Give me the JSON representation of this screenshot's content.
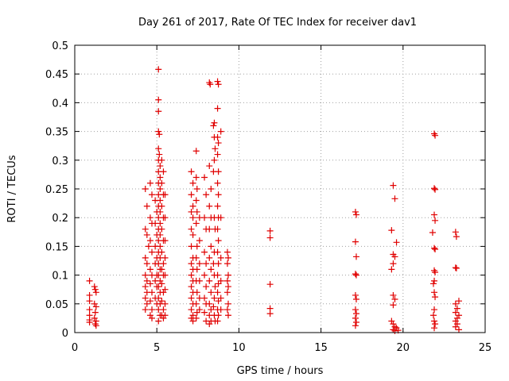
{
  "chart_data": {
    "type": "scatter",
    "title": "Day 261 of 2017, Rate Of TEC Index for receiver dav1",
    "xlabel": "GPS time / hours",
    "ylabel": "ROTI / TECUs",
    "xlim": [
      0,
      25
    ],
    "ylim": [
      0,
      0.5
    ],
    "xticks": [
      "0",
      "5",
      "10",
      "15",
      "20",
      "25"
    ],
    "yticks": [
      "0",
      "0.05",
      "0.1",
      "0.15",
      "0.2",
      "0.25",
      "0.3",
      "0.35",
      "0.4",
      "0.45",
      "0.5"
    ],
    "grid": true,
    "marker": "plus",
    "color": "#e00000",
    "series": [
      {
        "points": [
          [
            0.9,
            0.09
          ],
          [
            0.9,
            0.065
          ],
          [
            0.9,
            0.055
          ],
          [
            0.9,
            0.04
          ],
          [
            0.9,
            0.03
          ],
          [
            0.9,
            0.022
          ],
          [
            0.9,
            0.018
          ],
          [
            1.2,
            0.08
          ],
          [
            1.25,
            0.075
          ],
          [
            1.3,
            0.07
          ],
          [
            1.2,
            0.05
          ],
          [
            1.3,
            0.045
          ],
          [
            1.25,
            0.035
          ],
          [
            1.2,
            0.025
          ],
          [
            1.3,
            0.02
          ],
          [
            1.25,
            0.015
          ],
          [
            1.3,
            0.012
          ],
          [
            4.3,
            0.25
          ],
          [
            4.4,
            0.22
          ],
          [
            4.3,
            0.18
          ],
          [
            4.4,
            0.17
          ],
          [
            4.5,
            0.15
          ],
          [
            4.3,
            0.13
          ],
          [
            4.4,
            0.12
          ],
          [
            4.3,
            0.1
          ],
          [
            4.4,
            0.09
          ],
          [
            4.3,
            0.08
          ],
          [
            4.4,
            0.07
          ],
          [
            4.3,
            0.06
          ],
          [
            4.4,
            0.05
          ],
          [
            4.3,
            0.04
          ],
          [
            4.6,
            0.26
          ],
          [
            4.7,
            0.24
          ],
          [
            4.6,
            0.2
          ],
          [
            4.7,
            0.19
          ],
          [
            4.6,
            0.16
          ],
          [
            4.7,
            0.14
          ],
          [
            4.6,
            0.11
          ],
          [
            4.7,
            0.1
          ],
          [
            4.6,
            0.085
          ],
          [
            4.7,
            0.07
          ],
          [
            4.6,
            0.055
          ],
          [
            4.7,
            0.04
          ],
          [
            4.6,
            0.03
          ],
          [
            4.7,
            0.025
          ],
          [
            4.9,
            0.23
          ],
          [
            5.0,
            0.21
          ],
          [
            4.9,
            0.19
          ],
          [
            5.0,
            0.17
          ],
          [
            4.9,
            0.15
          ],
          [
            5.0,
            0.13
          ],
          [
            4.9,
            0.12
          ],
          [
            5.0,
            0.1
          ],
          [
            4.9,
            0.09
          ],
          [
            5.0,
            0.08
          ],
          [
            4.9,
            0.06
          ],
          [
            5.0,
            0.05
          ],
          [
            5.1,
            0.458
          ],
          [
            5.1,
            0.405
          ],
          [
            5.1,
            0.385
          ],
          [
            5.1,
            0.35
          ],
          [
            5.15,
            0.345
          ],
          [
            5.1,
            0.32
          ],
          [
            5.15,
            0.31
          ],
          [
            5.1,
            0.3
          ],
          [
            5.2,
            0.29
          ],
          [
            5.1,
            0.28
          ],
          [
            5.2,
            0.27
          ],
          [
            5.1,
            0.26
          ],
          [
            5.2,
            0.25
          ],
          [
            5.1,
            0.24
          ],
          [
            5.2,
            0.23
          ],
          [
            5.1,
            0.22
          ],
          [
            5.2,
            0.21
          ],
          [
            5.1,
            0.2
          ],
          [
            5.2,
            0.19
          ],
          [
            5.1,
            0.18
          ],
          [
            5.2,
            0.17
          ],
          [
            5.1,
            0.16
          ],
          [
            5.2,
            0.15
          ],
          [
            5.1,
            0.14
          ],
          [
            5.2,
            0.13
          ],
          [
            5.1,
            0.12
          ],
          [
            5.2,
            0.11
          ],
          [
            5.1,
            0.1
          ],
          [
            5.2,
            0.09
          ],
          [
            5.1,
            0.08
          ],
          [
            5.2,
            0.07
          ],
          [
            5.1,
            0.06
          ],
          [
            5.2,
            0.05
          ],
          [
            5.1,
            0.04
          ],
          [
            5.2,
            0.03
          ],
          [
            5.1,
            0.02
          ],
          [
            5.3,
            0.3
          ],
          [
            5.4,
            0.28
          ],
          [
            5.3,
            0.26
          ],
          [
            5.4,
            0.24
          ],
          [
            5.3,
            0.22
          ],
          [
            5.4,
            0.2
          ],
          [
            5.3,
            0.18
          ],
          [
            5.4,
            0.16
          ],
          [
            5.3,
            0.14
          ],
          [
            5.4,
            0.12
          ],
          [
            5.3,
            0.11
          ],
          [
            5.4,
            0.1
          ],
          [
            5.3,
            0.085
          ],
          [
            5.4,
            0.07
          ],
          [
            5.3,
            0.055
          ],
          [
            5.4,
            0.04
          ],
          [
            5.3,
            0.03
          ],
          [
            5.4,
            0.025
          ],
          [
            5.5,
            0.24
          ],
          [
            5.5,
            0.2
          ],
          [
            5.5,
            0.16
          ],
          [
            5.5,
            0.13
          ],
          [
            5.5,
            0.1
          ],
          [
            5.5,
            0.075
          ],
          [
            5.5,
            0.05
          ],
          [
            5.5,
            0.03
          ],
          [
            7.1,
            0.28
          ],
          [
            7.2,
            0.26
          ],
          [
            7.1,
            0.24
          ],
          [
            7.2,
            0.22
          ],
          [
            7.1,
            0.21
          ],
          [
            7.2,
            0.2
          ],
          [
            7.1,
            0.18
          ],
          [
            7.2,
            0.17
          ],
          [
            7.1,
            0.15
          ],
          [
            7.2,
            0.13
          ],
          [
            7.1,
            0.12
          ],
          [
            7.2,
            0.11
          ],
          [
            7.1,
            0.1
          ],
          [
            7.2,
            0.09
          ],
          [
            7.1,
            0.08
          ],
          [
            7.2,
            0.07
          ],
          [
            7.1,
            0.06
          ],
          [
            7.2,
            0.05
          ],
          [
            7.1,
            0.04
          ],
          [
            7.2,
            0.03
          ],
          [
            7.1,
            0.025
          ],
          [
            7.2,
            0.02
          ],
          [
            7.4,
            0.316
          ],
          [
            7.4,
            0.27
          ],
          [
            7.45,
            0.25
          ],
          [
            7.4,
            0.23
          ],
          [
            7.45,
            0.21
          ],
          [
            7.4,
            0.19
          ],
          [
            7.45,
            0.15
          ],
          [
            7.4,
            0.13
          ],
          [
            7.45,
            0.11
          ],
          [
            7.4,
            0.09
          ],
          [
            7.45,
            0.07
          ],
          [
            7.4,
            0.05
          ],
          [
            7.45,
            0.035
          ],
          [
            7.4,
            0.025
          ],
          [
            7.6,
            0.2
          ],
          [
            7.6,
            0.16
          ],
          [
            7.6,
            0.12
          ],
          [
            7.6,
            0.09
          ],
          [
            7.6,
            0.06
          ],
          [
            7.6,
            0.04
          ],
          [
            7.9,
            0.27
          ],
          [
            8.0,
            0.24
          ],
          [
            7.9,
            0.2
          ],
          [
            8.0,
            0.18
          ],
          [
            7.9,
            0.14
          ],
          [
            8.0,
            0.12
          ],
          [
            7.9,
            0.1
          ],
          [
            8.0,
            0.08
          ],
          [
            7.9,
            0.06
          ],
          [
            8.0,
            0.05
          ],
          [
            7.9,
            0.035
          ],
          [
            8.0,
            0.02
          ],
          [
            8.2,
            0.435
          ],
          [
            8.25,
            0.432
          ],
          [
            8.2,
            0.29
          ],
          [
            8.3,
            0.25
          ],
          [
            8.2,
            0.22
          ],
          [
            8.3,
            0.2
          ],
          [
            8.2,
            0.18
          ],
          [
            8.3,
            0.15
          ],
          [
            8.2,
            0.13
          ],
          [
            8.3,
            0.11
          ],
          [
            8.2,
            0.09
          ],
          [
            8.3,
            0.07
          ],
          [
            8.2,
            0.05
          ],
          [
            8.3,
            0.04
          ],
          [
            8.2,
            0.03
          ],
          [
            8.3,
            0.02
          ],
          [
            8.2,
            0.015
          ],
          [
            8.5,
            0.365
          ],
          [
            8.45,
            0.36
          ],
          [
            8.5,
            0.34
          ],
          [
            8.55,
            0.32
          ],
          [
            8.5,
            0.3
          ],
          [
            8.45,
            0.28
          ],
          [
            8.5,
            0.2
          ],
          [
            8.55,
            0.18
          ],
          [
            8.5,
            0.14
          ],
          [
            8.45,
            0.12
          ],
          [
            8.5,
            0.1
          ],
          [
            8.55,
            0.08
          ],
          [
            8.5,
            0.06
          ],
          [
            8.45,
            0.045
          ],
          [
            8.5,
            0.03
          ],
          [
            8.55,
            0.02
          ],
          [
            8.7,
            0.437
          ],
          [
            8.75,
            0.432
          ],
          [
            8.7,
            0.39
          ],
          [
            8.7,
            0.34
          ],
          [
            8.75,
            0.33
          ],
          [
            8.7,
            0.31
          ],
          [
            8.75,
            0.28
          ],
          [
            8.7,
            0.26
          ],
          [
            8.75,
            0.24
          ],
          [
            8.7,
            0.22
          ],
          [
            8.75,
            0.2
          ],
          [
            8.7,
            0.18
          ],
          [
            8.75,
            0.16
          ],
          [
            8.7,
            0.14
          ],
          [
            8.75,
            0.12
          ],
          [
            8.7,
            0.1
          ],
          [
            8.75,
            0.085
          ],
          [
            8.7,
            0.07
          ],
          [
            8.75,
            0.055
          ],
          [
            8.7,
            0.04
          ],
          [
            8.75,
            0.03
          ],
          [
            8.7,
            0.02
          ],
          [
            8.9,
            0.35
          ],
          [
            8.9,
            0.2
          ],
          [
            8.9,
            0.13
          ],
          [
            8.9,
            0.09
          ],
          [
            8.9,
            0.06
          ],
          [
            8.9,
            0.04
          ],
          [
            9.3,
            0.14
          ],
          [
            9.35,
            0.13
          ],
          [
            9.3,
            0.12
          ],
          [
            9.35,
            0.1
          ],
          [
            9.3,
            0.09
          ],
          [
            9.35,
            0.08
          ],
          [
            9.3,
            0.07
          ],
          [
            9.35,
            0.05
          ],
          [
            9.3,
            0.04
          ],
          [
            9.35,
            0.03
          ],
          [
            11.9,
            0.177
          ],
          [
            11.9,
            0.165
          ],
          [
            11.9,
            0.084
          ],
          [
            11.9,
            0.042
          ],
          [
            11.9,
            0.033
          ],
          [
            17.1,
            0.21
          ],
          [
            17.15,
            0.205
          ],
          [
            17.1,
            0.158
          ],
          [
            17.15,
            0.132
          ],
          [
            17.1,
            0.102
          ],
          [
            17.15,
            0.1
          ],
          [
            17.1,
            0.065
          ],
          [
            17.15,
            0.058
          ],
          [
            17.1,
            0.04
          ],
          [
            17.15,
            0.033
          ],
          [
            17.1,
            0.025
          ],
          [
            17.15,
            0.018
          ],
          [
            17.1,
            0.012
          ],
          [
            19.4,
            0.256
          ],
          [
            19.5,
            0.233
          ],
          [
            19.3,
            0.178
          ],
          [
            19.6,
            0.157
          ],
          [
            19.4,
            0.136
          ],
          [
            19.5,
            0.132
          ],
          [
            19.4,
            0.12
          ],
          [
            19.3,
            0.11
          ],
          [
            19.4,
            0.065
          ],
          [
            19.5,
            0.058
          ],
          [
            19.4,
            0.048
          ],
          [
            19.3,
            0.02
          ],
          [
            19.4,
            0.015
          ],
          [
            19.5,
            0.01
          ],
          [
            19.6,
            0.008
          ],
          [
            19.4,
            0.005
          ],
          [
            19.5,
            0.003
          ],
          [
            19.7,
            0.004
          ],
          [
            21.9,
            0.346
          ],
          [
            21.95,
            0.343
          ],
          [
            21.9,
            0.251
          ],
          [
            21.95,
            0.249
          ],
          [
            21.9,
            0.205
          ],
          [
            21.95,
            0.195
          ],
          [
            21.8,
            0.174
          ],
          [
            21.9,
            0.147
          ],
          [
            21.95,
            0.145
          ],
          [
            21.9,
            0.108
          ],
          [
            21.95,
            0.105
          ],
          [
            21.9,
            0.09
          ],
          [
            21.85,
            0.085
          ],
          [
            21.9,
            0.07
          ],
          [
            21.95,
            0.062
          ],
          [
            21.9,
            0.04
          ],
          [
            21.85,
            0.03
          ],
          [
            21.9,
            0.02
          ],
          [
            21.95,
            0.015
          ],
          [
            21.9,
            0.008
          ],
          [
            23.2,
            0.175
          ],
          [
            23.25,
            0.167
          ],
          [
            23.2,
            0.113
          ],
          [
            23.25,
            0.112
          ],
          [
            23.2,
            0.05
          ],
          [
            23.3,
            0.042
          ],
          [
            23.2,
            0.035
          ],
          [
            23.3,
            0.025
          ],
          [
            23.2,
            0.02
          ],
          [
            23.3,
            0.015
          ],
          [
            23.2,
            0.01
          ],
          [
            23.4,
            0.055
          ],
          [
            23.4,
            0.03
          ],
          [
            23.4,
            0.005
          ]
        ]
      }
    ]
  }
}
